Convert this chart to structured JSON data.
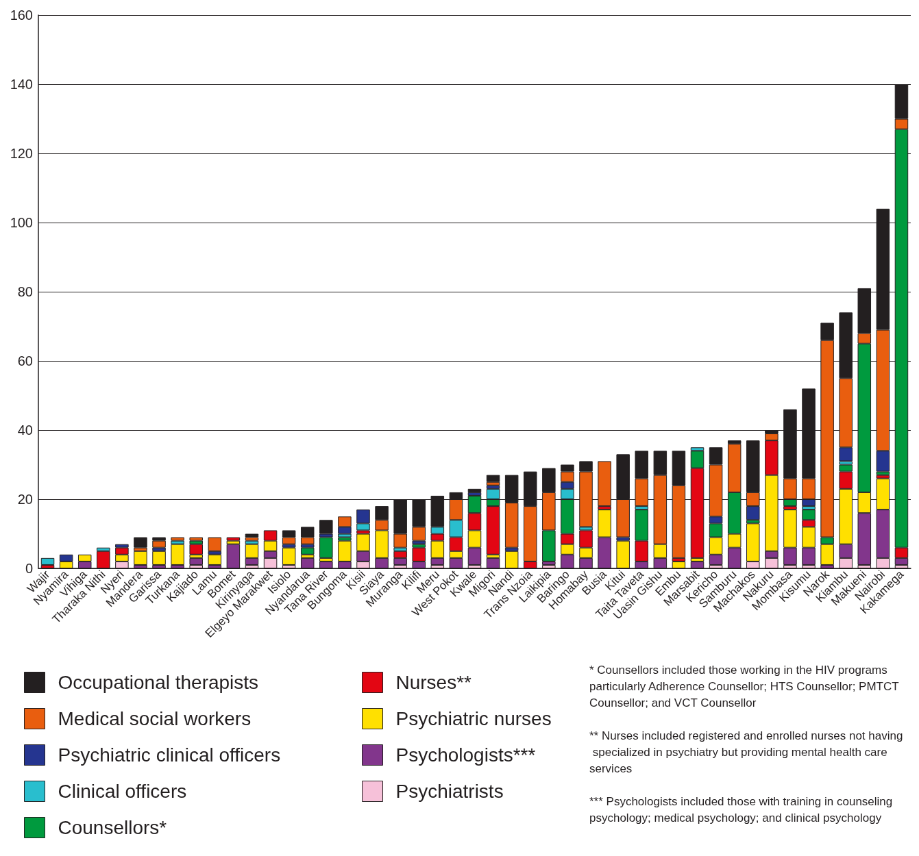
{
  "chart_data": {
    "type": "bar",
    "stacked": true,
    "categories": [
      "Wajir",
      "Nyamira",
      "Vihiga",
      "Tharaka Nithi",
      "Nyeri",
      "Mandera",
      "Garissa",
      "Turkana",
      "Kajiado",
      "Lamu",
      "Bomet",
      "Kirinyaga",
      "Elgeyo Marakwet",
      "Isiolo",
      "Nyandarua",
      "Tana River",
      "Bungoma",
      "Kisii",
      "Siaya",
      "Muranga",
      "Kilifi",
      "Meru",
      "West Pokot",
      "Kwale",
      "Migori",
      "Nandi",
      "Trans Nzoia",
      "Laikipia",
      "Baringo",
      "Homabay",
      "Busia",
      "Kitui",
      "Taita Taveta",
      "Uasin Gishu",
      "Embu",
      "Marsabit",
      "Kericho",
      "Samburu",
      "Machakos",
      "Nakuru",
      "Mombasa",
      "Kisumu",
      "Narok",
      "Kiambu",
      "Makueni",
      "Nairobi",
      "Kakamega"
    ],
    "series": [
      {
        "name": "Psychiatrists",
        "color": "#f6c1d9",
        "values": [
          0,
          0,
          0,
          0,
          2,
          0,
          0,
          0,
          1,
          0,
          0,
          1,
          3,
          1,
          0,
          0,
          0,
          2,
          0,
          1,
          0,
          1,
          0,
          1,
          0,
          0,
          0,
          1,
          0,
          0,
          0,
          0,
          0,
          0,
          0,
          0,
          1,
          0,
          2,
          3,
          1,
          1,
          0,
          3,
          1,
          3,
          1
        ]
      },
      {
        "name": "Psychologists***",
        "color": "#82368c",
        "values": [
          0,
          0,
          2,
          0,
          0,
          1,
          1,
          1,
          2,
          1,
          7,
          2,
          2,
          0,
          3,
          2,
          2,
          3,
          3,
          2,
          2,
          2,
          3,
          5,
          3,
          0,
          0,
          1,
          4,
          3,
          9,
          0,
          2,
          3,
          0,
          2,
          3,
          6,
          0,
          2,
          5,
          5,
          1,
          4,
          15,
          14,
          2
        ]
      },
      {
        "name": "Psychiatric nurses",
        "color": "#ffe000",
        "values": [
          0,
          2,
          2,
          0,
          2,
          4,
          4,
          6,
          1,
          3,
          1,
          4,
          3,
          5,
          1,
          1,
          6,
          5,
          8,
          0,
          0,
          5,
          2,
          5,
          1,
          5,
          0,
          0,
          3,
          3,
          8,
          8,
          0,
          4,
          2,
          1,
          5,
          4,
          11,
          22,
          11,
          6,
          6,
          16,
          6,
          9,
          0
        ]
      },
      {
        "name": "Nurses**",
        "color": "#e30613",
        "values": [
          1,
          0,
          0,
          5,
          2,
          0,
          0,
          0,
          3,
          0,
          1,
          0,
          3,
          0,
          0,
          0,
          0,
          1,
          0,
          2,
          4,
          2,
          4,
          5,
          14,
          0,
          2,
          0,
          3,
          5,
          1,
          0,
          6,
          0,
          1,
          26,
          0,
          0,
          0,
          10,
          1,
          2,
          0,
          5,
          0,
          1,
          3
        ]
      },
      {
        "name": "Counsellors*",
        "color": "#009a3e",
        "values": [
          0,
          0,
          0,
          0,
          0,
          0,
          0,
          0,
          1,
          0,
          0,
          0,
          0,
          0,
          2,
          6,
          1,
          0,
          0,
          0,
          1,
          0,
          0,
          5,
          2,
          0,
          0,
          9,
          10,
          0,
          0,
          0,
          9,
          0,
          0,
          5,
          4,
          12,
          1,
          0,
          2,
          3,
          2,
          2,
          43,
          1,
          121
        ]
      },
      {
        "name": "Clinical officers",
        "color": "#29bece",
        "values": [
          2,
          0,
          0,
          1,
          0,
          0,
          0,
          1,
          0,
          0,
          0,
          1,
          0,
          0,
          0,
          0,
          1,
          2,
          0,
          1,
          0,
          2,
          5,
          0,
          3,
          0,
          0,
          0,
          3,
          1,
          0,
          0,
          1,
          0,
          0,
          1,
          0,
          0,
          0,
          0,
          0,
          1,
          0,
          1,
          0,
          0,
          0
        ]
      },
      {
        "name": "Psychiatric clinical officers",
        "color": "#253590",
        "values": [
          0,
          2,
          0,
          0,
          1,
          0,
          1,
          0,
          0,
          1,
          0,
          0,
          0,
          1,
          1,
          1,
          2,
          4,
          0,
          0,
          1,
          0,
          0,
          1,
          1,
          1,
          0,
          0,
          2,
          0,
          0,
          1,
          0,
          0,
          0,
          0,
          2,
          0,
          4,
          0,
          0,
          2,
          0,
          4,
          0,
          6,
          0
        ]
      },
      {
        "name": "Medical social workers",
        "color": "#e95e0f",
        "values": [
          0,
          0,
          0,
          0,
          0,
          1,
          2,
          1,
          1,
          4,
          0,
          1,
          0,
          2,
          2,
          0,
          3,
          0,
          3,
          4,
          4,
          0,
          6,
          0,
          1,
          13,
          16,
          11,
          3,
          16,
          13,
          11,
          8,
          20,
          21,
          0,
          15,
          14,
          4,
          2,
          6,
          6,
          57,
          20,
          3,
          35,
          3
        ]
      },
      {
        "name": "Occupational therapists",
        "color": "#231f20",
        "values": [
          0,
          0,
          0,
          0,
          0,
          3,
          1,
          0,
          0,
          0,
          0,
          1,
          0,
          2,
          3,
          4,
          0,
          0,
          4,
          10,
          8,
          9,
          2,
          1,
          2,
          8,
          10,
          7,
          2,
          3,
          0,
          13,
          8,
          7,
          10,
          0,
          5,
          1,
          15,
          1,
          20,
          26,
          5,
          19,
          13,
          35,
          10
        ]
      }
    ],
    "ylim": [
      0,
      160
    ],
    "yticks": [
      0,
      20,
      40,
      60,
      80,
      100,
      120,
      140,
      160
    ],
    "grid": "y",
    "legend": "bottom",
    "annotations": [
      "* Counsellors included those working in the HIV programs particularly Adherence Counsellor; HTS Counsellor; PMTCT Counsellor; and VCT Counsellor",
      "** Nurses included registered and enrolled nurses not having specialized in psychiatry but providing mental health care services",
      "*** Psychologists included those with training in counseling psychology; medical psychology; and clinical psychology"
    ]
  }
}
